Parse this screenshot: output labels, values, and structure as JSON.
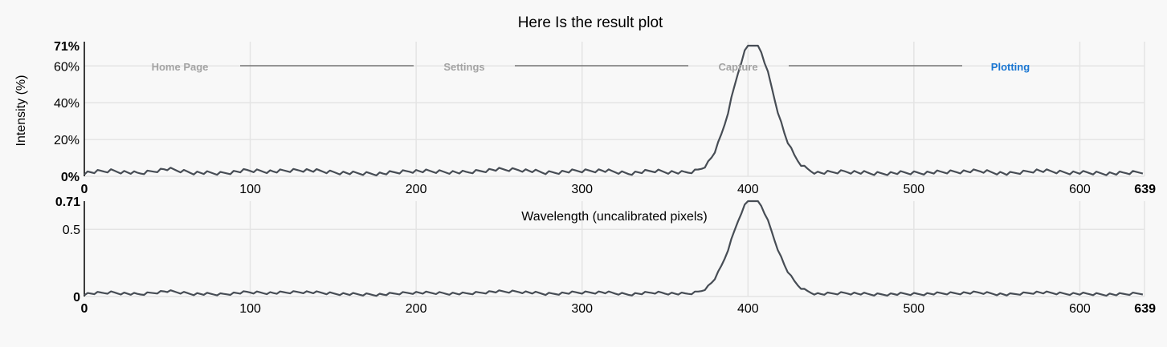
{
  "stepper": {
    "steps": [
      {
        "label": "Home Page",
        "state": "done"
      },
      {
        "label": "Settings",
        "state": "done"
      },
      {
        "label": "Capture",
        "state": "done"
      },
      {
        "label": "Plotting",
        "state": "active"
      }
    ],
    "colors": {
      "done": "#a3a3a3",
      "active": "#1976d2",
      "connector": "#757575"
    }
  },
  "colors": {
    "line": "#474d55",
    "grid": "#e4e4e4",
    "background": "#f8f8f8",
    "axis": "#000000"
  },
  "chart_data": [
    {
      "type": "line",
      "title": "Here Is the result plot",
      "xlabel": "",
      "ylabel": "Intensity (%)",
      "xlim": [
        0,
        639
      ],
      "ylim": [
        0,
        71
      ],
      "x_ticks": [
        "0",
        "100",
        "200",
        "300",
        "400",
        "500",
        "600",
        "639"
      ],
      "y_ticks": [
        "0%",
        "20%",
        "40%",
        "60%",
        "71%"
      ],
      "grid": true,
      "baseline": [
        1.5,
        3.4,
        0.8,
        5.0,
        1.7,
        1.0,
        3.6,
        2.6,
        4.2,
        2.3,
        0.9,
        0.8,
        3.2,
        2.6,
        1.7,
        4.3,
        4.4,
        1.5,
        3.0,
        3.7,
        1.0,
        3.3,
        1.3,
        1.6,
        3.0,
        2.5,
        3.8,
        0.9,
        2.8,
        0.8,
        1.4,
        1.6,
        2.5,
        3.1,
        0.5,
        3.6,
        2.0,
        1.4,
        0.8,
        2.6
      ],
      "peak": {
        "center": 403,
        "height": 71,
        "width": 12
      }
    },
    {
      "type": "line",
      "title": "",
      "xlabel": "Wavelength (uncalibrated pixels)",
      "ylabel": "",
      "xlim": [
        0,
        639
      ],
      "ylim": [
        0,
        0.71
      ],
      "x_ticks": [
        "0",
        "100",
        "200",
        "300",
        "400",
        "500",
        "600",
        "639"
      ],
      "y_ticks": [
        "0",
        "0.5",
        "0.71"
      ],
      "grid": true,
      "same_series_as": 0
    }
  ]
}
